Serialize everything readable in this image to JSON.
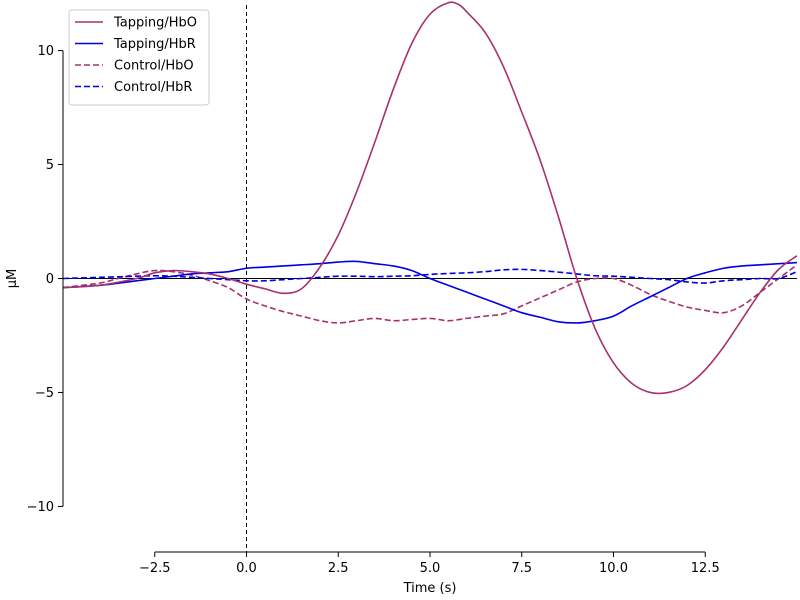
{
  "chart_data": {
    "type": "line",
    "title": "",
    "xlabel": "Time (s)",
    "ylabel": "µM",
    "xlim": [
      -5,
      15
    ],
    "ylim": [
      -12,
      12
    ],
    "x_ticks": [
      -2.5,
      0.0,
      2.5,
      5.0,
      7.5,
      10.0,
      12.5
    ],
    "x_tick_labels": [
      "−2.5",
      "0.0",
      "2.5",
      "5.0",
      "7.5",
      "10.0",
      "12.5"
    ],
    "y_ticks": [
      10,
      5,
      0,
      -5,
      -10
    ],
    "y_tick_labels": [
      "10",
      "5",
      "0",
      "−5",
      "−10"
    ],
    "grid": false,
    "legend_position": "top-left",
    "annotations": [
      {
        "type": "vline",
        "x": 0,
        "style": "dashed",
        "color": "#000000"
      },
      {
        "type": "hline",
        "y": 0,
        "style": "solid",
        "color": "#000000"
      }
    ],
    "series": [
      {
        "name": "Tapping/HbO",
        "color": "#a8306e",
        "style": "solid",
        "x": [
          -5,
          -4,
          -3,
          -2.5,
          -2,
          -1.5,
          -1,
          -0.5,
          0,
          0.5,
          1,
          1.5,
          2,
          2.5,
          3,
          3.5,
          4,
          4.5,
          5,
          5.5,
          5.8,
          6,
          6.5,
          7,
          7.5,
          8,
          8.5,
          9,
          9.5,
          10,
          10.5,
          11,
          11.5,
          12,
          12.5,
          13,
          13.5,
          14,
          14.5,
          15
        ],
        "y": [
          -0.4,
          -0.3,
          0.0,
          0.25,
          0.35,
          0.3,
          0.2,
          0.0,
          -0.25,
          -0.45,
          -0.65,
          -0.45,
          0.5,
          1.9,
          3.8,
          6.0,
          8.3,
          10.3,
          11.6,
          12.1,
          12.0,
          11.7,
          10.8,
          9.3,
          7.3,
          5.2,
          2.7,
          0.0,
          -2.2,
          -3.7,
          -4.6,
          -5.0,
          -5.0,
          -4.7,
          -4.0,
          -3.0,
          -1.8,
          -0.6,
          0.4,
          1.0
        ]
      },
      {
        "name": "Tapping/HbR",
        "color": "#0000e6",
        "style": "solid",
        "x": [
          -5,
          -4,
          -3,
          -2.5,
          -2,
          -1.5,
          -1,
          -0.5,
          0,
          0.5,
          1,
          1.5,
          2,
          2.5,
          3,
          3.5,
          4,
          4.5,
          5,
          5.5,
          6,
          6.5,
          7,
          7.5,
          8,
          8.5,
          9,
          9.5,
          10,
          10.5,
          11,
          11.5,
          12,
          12.5,
          13,
          13.5,
          14,
          14.5,
          15
        ],
        "y": [
          -0.4,
          -0.3,
          -0.1,
          0.0,
          0.1,
          0.2,
          0.25,
          0.3,
          0.45,
          0.5,
          0.55,
          0.6,
          0.65,
          0.72,
          0.75,
          0.65,
          0.55,
          0.35,
          0.0,
          -0.3,
          -0.6,
          -0.9,
          -1.2,
          -1.5,
          -1.7,
          -1.9,
          -1.95,
          -1.85,
          -1.65,
          -1.2,
          -0.8,
          -0.4,
          0.0,
          0.25,
          0.45,
          0.55,
          0.6,
          0.65,
          0.7
        ]
      },
      {
        "name": "Control/HbO",
        "color": "#a8306e",
        "style": "dashed",
        "x": [
          -5,
          -4,
          -3.5,
          -3,
          -2.5,
          -2,
          -1.5,
          -1,
          -0.5,
          0,
          0.5,
          1,
          1.5,
          2,
          2.5,
          3,
          3.5,
          4,
          4.5,
          5,
          5.5,
          6,
          6.5,
          7,
          7.5,
          8,
          8.5,
          9,
          9.5,
          10,
          10.5,
          11,
          11.5,
          12,
          12.5,
          13,
          13.5,
          14,
          14.5,
          15
        ],
        "y": [
          -0.4,
          -0.2,
          0.0,
          0.2,
          0.35,
          0.3,
          0.15,
          -0.1,
          -0.4,
          -0.9,
          -1.2,
          -1.45,
          -1.65,
          -1.85,
          -1.95,
          -1.85,
          -1.75,
          -1.85,
          -1.8,
          -1.75,
          -1.85,
          -1.75,
          -1.65,
          -1.55,
          -1.2,
          -0.85,
          -0.5,
          -0.15,
          0.0,
          0.0,
          -0.3,
          -0.7,
          -1.0,
          -1.25,
          -1.4,
          -1.5,
          -1.2,
          -0.6,
          0.0,
          0.6
        ]
      },
      {
        "name": "Control/HbR",
        "color": "#0000e6",
        "style": "dashed",
        "x": [
          -5,
          -4,
          -3,
          -2.5,
          -2,
          -1.5,
          -1,
          -0.5,
          0,
          0.5,
          1,
          1.5,
          2,
          2.5,
          3,
          3.5,
          4,
          4.5,
          5,
          5.5,
          6,
          6.5,
          7,
          7.5,
          8,
          8.5,
          9,
          9.5,
          10,
          10.5,
          11,
          11.5,
          12,
          12.5,
          13,
          13.5,
          14,
          14.5,
          15
        ],
        "y": [
          0.0,
          0.05,
          0.1,
          0.12,
          0.1,
          0.05,
          0.0,
          -0.05,
          -0.1,
          -0.1,
          -0.05,
          0.0,
          0.05,
          0.1,
          0.1,
          0.08,
          0.1,
          0.12,
          0.18,
          0.22,
          0.25,
          0.3,
          0.38,
          0.4,
          0.35,
          0.28,
          0.2,
          0.12,
          0.1,
          0.05,
          0.0,
          -0.05,
          -0.15,
          -0.2,
          -0.1,
          -0.05,
          0.0,
          0.0,
          0.3
        ]
      }
    ]
  }
}
